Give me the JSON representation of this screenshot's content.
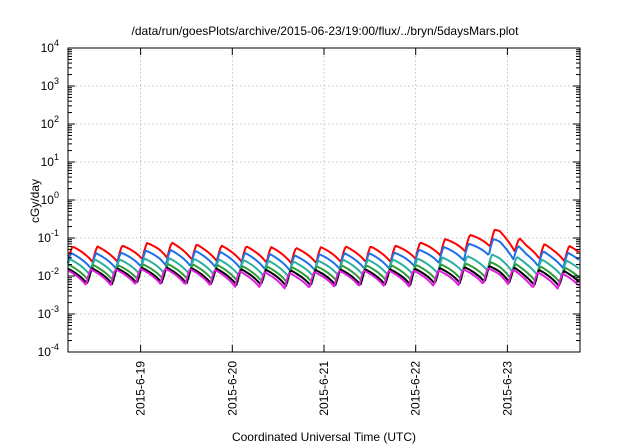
{
  "chart_data": {
    "type": "line",
    "title": "/data/run/goesPlots/archive/2015-06-23/19:00/flux/../bryn/5daysMars.plot",
    "xlabel": "Coordinated Universal Time (UTC)",
    "ylabel": "cGy/day",
    "yscale": "log",
    "ylim": [
      0.0001,
      10000
    ],
    "xlim": [
      "2015-06-18 05:00",
      "2015-06-23 19:00"
    ],
    "y_ticks": [
      {
        "mantissa": "10",
        "exp": "-4"
      },
      {
        "mantissa": "10",
        "exp": "-3"
      },
      {
        "mantissa": "10",
        "exp": "-2"
      },
      {
        "mantissa": "10",
        "exp": "-1"
      },
      {
        "mantissa": "10",
        "exp": "0"
      },
      {
        "mantissa": "10",
        "exp": "1"
      },
      {
        "mantissa": "10",
        "exp": "2"
      },
      {
        "mantissa": "10",
        "exp": "3"
      },
      {
        "mantissa": "10",
        "exp": "4"
      }
    ],
    "x_ticks": [
      "2015-6-19",
      "2015-6-20",
      "2015-6-21",
      "2015-6-22",
      "2015-6-23"
    ],
    "grid": true,
    "legend": "none",
    "series": [
      {
        "color": "#ff0000",
        "values": [
          [
            "2015-06-18 05:00",
            0.06
          ],
          [
            "2015-06-18 17:00",
            0.06
          ],
          [
            "2015-06-19 05:00",
            0.08
          ],
          [
            "2015-06-19 17:00",
            0.065
          ],
          [
            "2015-06-20 05:00",
            0.06
          ],
          [
            "2015-06-20 17:00",
            0.055
          ],
          [
            "2015-06-21 05:00",
            0.06
          ],
          [
            "2015-06-21 17:00",
            0.06
          ],
          [
            "2015-06-22 05:00",
            0.085
          ],
          [
            "2015-06-22 12:00",
            0.11
          ],
          [
            "2015-06-22 19:00",
            0.15
          ],
          [
            "2015-06-22 22:00",
            0.18
          ],
          [
            "2015-06-23 05:00",
            0.08
          ],
          [
            "2015-06-23 12:00",
            0.065
          ],
          [
            "2015-06-23 19:00",
            0.06
          ]
        ]
      },
      {
        "color": "#1f6fe8",
        "values": [
          [
            "2015-06-18 05:00",
            0.04
          ],
          [
            "2015-06-18 17:00",
            0.04
          ],
          [
            "2015-06-19 05:00",
            0.05
          ],
          [
            "2015-06-19 17:00",
            0.045
          ],
          [
            "2015-06-20 05:00",
            0.04
          ],
          [
            "2015-06-20 17:00",
            0.035
          ],
          [
            "2015-06-21 05:00",
            0.04
          ],
          [
            "2015-06-21 17:00",
            0.04
          ],
          [
            "2015-06-22 05:00",
            0.055
          ],
          [
            "2015-06-22 12:00",
            0.065
          ],
          [
            "2015-06-22 19:00",
            0.09
          ],
          [
            "2015-06-22 22:00",
            0.1
          ],
          [
            "2015-06-23 05:00",
            0.05
          ],
          [
            "2015-06-23 12:00",
            0.042
          ],
          [
            "2015-06-23 19:00",
            0.04
          ]
        ]
      },
      {
        "color": "#2ab0a0",
        "values": [
          [
            "2015-06-18 05:00",
            0.028
          ],
          [
            "2015-06-18 17:00",
            0.027
          ],
          [
            "2015-06-19 05:00",
            0.03
          ],
          [
            "2015-06-19 17:00",
            0.028
          ],
          [
            "2015-06-20 05:00",
            0.026
          ],
          [
            "2015-06-20 17:00",
            0.024
          ],
          [
            "2015-06-21 05:00",
            0.027
          ],
          [
            "2015-06-21 17:00",
            0.027
          ],
          [
            "2015-06-22 05:00",
            0.03
          ],
          [
            "2015-06-22 12:00",
            0.033
          ],
          [
            "2015-06-22 19:00",
            0.036
          ],
          [
            "2015-06-22 22:00",
            0.038
          ],
          [
            "2015-06-23 05:00",
            0.029
          ],
          [
            "2015-06-23 12:00",
            0.026
          ],
          [
            "2015-06-23 19:00",
            0.025
          ]
        ]
      },
      {
        "color": "#2e9d3a",
        "values": [
          [
            "2015-06-18 05:00",
            0.02
          ],
          [
            "2015-06-18 17:00",
            0.019
          ],
          [
            "2015-06-19 05:00",
            0.021
          ],
          [
            "2015-06-19 17:00",
            0.02
          ],
          [
            "2015-06-20 05:00",
            0.018
          ],
          [
            "2015-06-20 17:00",
            0.017
          ],
          [
            "2015-06-21 05:00",
            0.019
          ],
          [
            "2015-06-21 17:00",
            0.019
          ],
          [
            "2015-06-22 05:00",
            0.02
          ],
          [
            "2015-06-22 12:00",
            0.021
          ],
          [
            "2015-06-22 19:00",
            0.023
          ],
          [
            "2015-06-22 22:00",
            0.024
          ],
          [
            "2015-06-23 05:00",
            0.019
          ],
          [
            "2015-06-23 12:00",
            0.017
          ],
          [
            "2015-06-23 19:00",
            0.016
          ]
        ]
      },
      {
        "color": "#000000",
        "values": [
          [
            "2015-06-18 05:00",
            0.016
          ],
          [
            "2015-06-18 17:00",
            0.016
          ],
          [
            "2015-06-19 05:00",
            0.017
          ],
          [
            "2015-06-19 17:00",
            0.016
          ],
          [
            "2015-06-20 05:00",
            0.015
          ],
          [
            "2015-06-20 17:00",
            0.014
          ],
          [
            "2015-06-21 05:00",
            0.015
          ],
          [
            "2015-06-21 17:00",
            0.015
          ],
          [
            "2015-06-22 05:00",
            0.016
          ],
          [
            "2015-06-22 12:00",
            0.017
          ],
          [
            "2015-06-22 19:00",
            0.018
          ],
          [
            "2015-06-22 22:00",
            0.019
          ],
          [
            "2015-06-23 05:00",
            0.015
          ],
          [
            "2015-06-23 12:00",
            0.014
          ],
          [
            "2015-06-23 19:00",
            0.013
          ]
        ]
      },
      {
        "color": "#e020e0",
        "values": [
          [
            "2015-06-18 05:00",
            0.015
          ],
          [
            "2015-06-18 17:00",
            0.015
          ],
          [
            "2015-06-19 05:00",
            0.016
          ],
          [
            "2015-06-19 17:00",
            0.015
          ],
          [
            "2015-06-20 05:00",
            0.013
          ],
          [
            "2015-06-20 17:00",
            0.012
          ],
          [
            "2015-06-21 05:00",
            0.014
          ],
          [
            "2015-06-21 17:00",
            0.014
          ],
          [
            "2015-06-22 05:00",
            0.014
          ],
          [
            "2015-06-22 12:00",
            0.015
          ],
          [
            "2015-06-22 19:00",
            0.016
          ],
          [
            "2015-06-22 22:00",
            0.017
          ],
          [
            "2015-06-23 05:00",
            0.013
          ],
          [
            "2015-06-23 12:00",
            0.012
          ],
          [
            "2015-06-23 19:00",
            0.011
          ]
        ]
      }
    ]
  }
}
